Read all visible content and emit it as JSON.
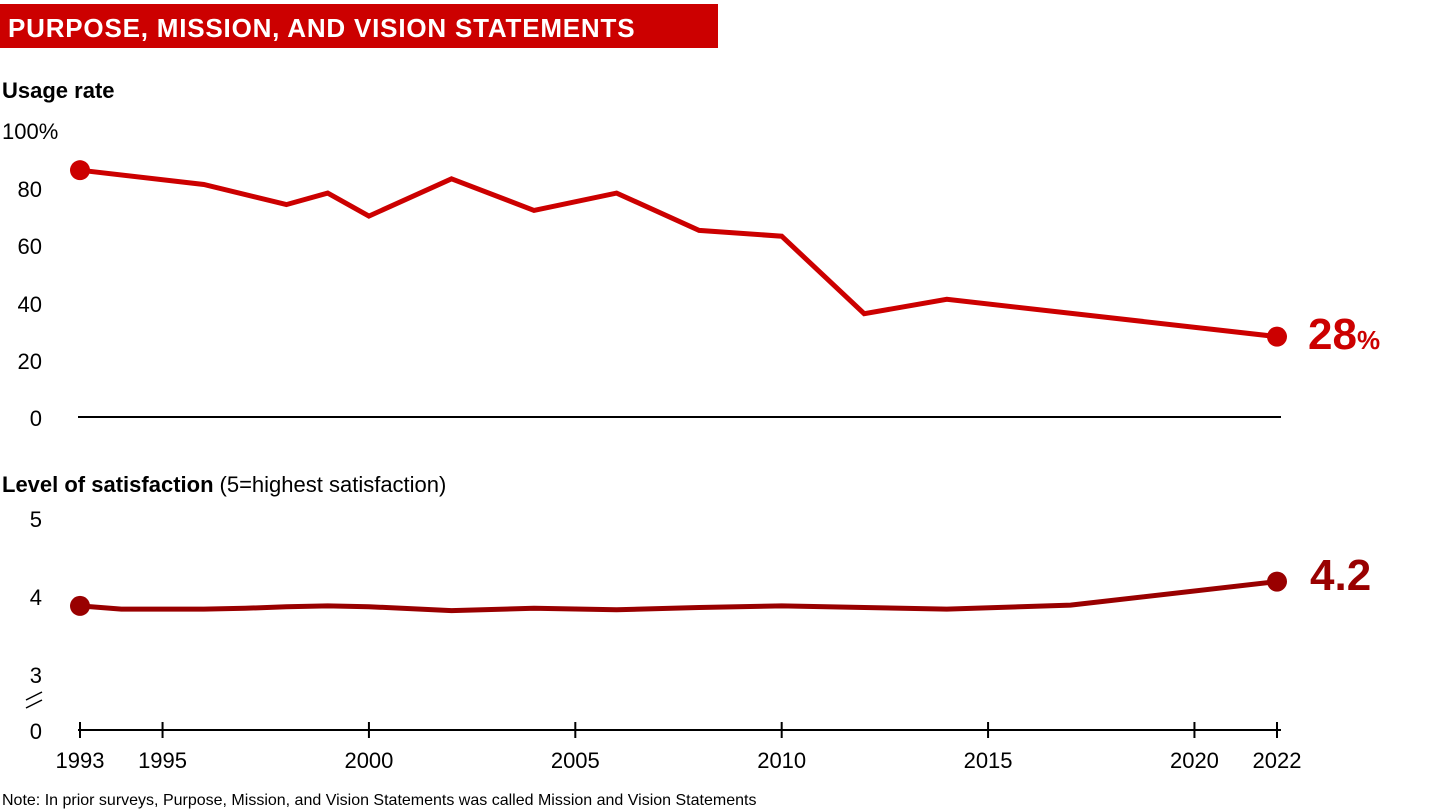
{
  "header": {
    "title": "PURPOSE, MISSION, AND VISION STATEMENTS"
  },
  "note": "Note: In prior surveys, Purpose, Mission, and Vision Statements was called Mission and Vision Statements",
  "colors": {
    "usage_line": "#cc0000",
    "satisfaction_line": "#990000",
    "axis": "#000000",
    "title_bg": "#cc0000"
  },
  "x_axis": {
    "ticks": [
      "1993",
      "1995",
      "2000",
      "2005",
      "2010",
      "2015",
      "2020",
      "2022"
    ]
  },
  "chart_data": [
    {
      "type": "line",
      "title": "Usage rate",
      "ylim": [
        0,
        100
      ],
      "y_ticks": [
        "100%",
        "80",
        "60",
        "40",
        "20",
        "0"
      ],
      "grid": false,
      "end_label": {
        "value": "28",
        "unit": "%"
      },
      "series": [
        {
          "x": [
            1993,
            1996,
            1998,
            1999,
            2000,
            2002,
            2004,
            2006,
            2008,
            2010,
            2012,
            2014,
            2022
          ],
          "values": [
            86,
            81,
            74,
            78,
            70,
            83,
            72,
            78,
            65,
            63,
            36,
            41,
            28
          ]
        }
      ]
    },
    {
      "type": "line",
      "title": "Level of satisfaction",
      "subtitle": "(5=highest satisfaction)",
      "ylim": [
        3,
        5
      ],
      "y_ticks": [
        "5",
        "4",
        "3",
        "0"
      ],
      "axis_break": true,
      "grid": false,
      "end_label": {
        "value": "4.2",
        "unit": ""
      },
      "series": [
        {
          "x": [
            1993,
            1994,
            1996,
            1997,
            1998,
            1999,
            2000,
            2002,
            2004,
            2006,
            2008,
            2010,
            2012,
            2014,
            2017,
            2022
          ],
          "values": [
            3.88,
            3.84,
            3.84,
            3.85,
            3.87,
            3.88,
            3.87,
            3.82,
            3.85,
            3.83,
            3.86,
            3.88,
            3.86,
            3.84,
            3.89,
            4.19
          ]
        }
      ]
    }
  ]
}
